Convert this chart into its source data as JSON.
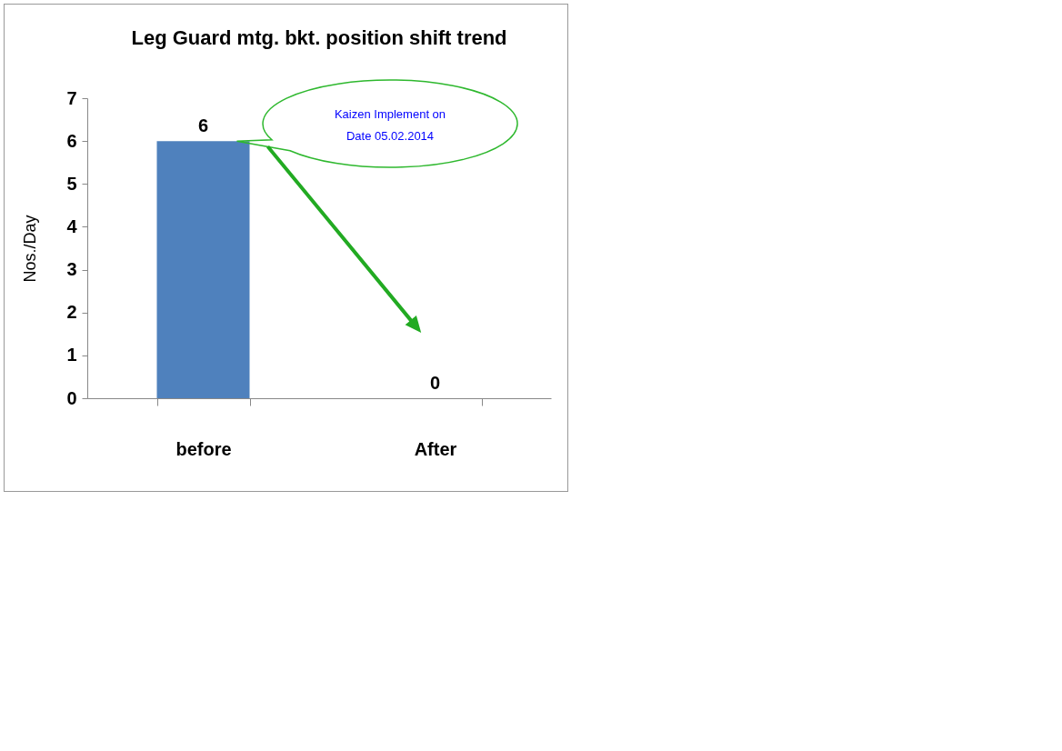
{
  "chart_data": {
    "type": "bar",
    "title": "Leg Guard mtg. bkt. position shift trend",
    "ylabel": "Nos./Day",
    "categories": [
      "before",
      "After"
    ],
    "values": [
      6,
      0
    ],
    "color": "#4f81bd",
    "ylim": [
      0,
      7
    ],
    "yticks": [
      0,
      1,
      2,
      3,
      4,
      5,
      6,
      7
    ],
    "data_labels": true,
    "grid": false,
    "annotations": [
      "Kaizen Implement on Date 05.02.2014"
    ]
  }
}
